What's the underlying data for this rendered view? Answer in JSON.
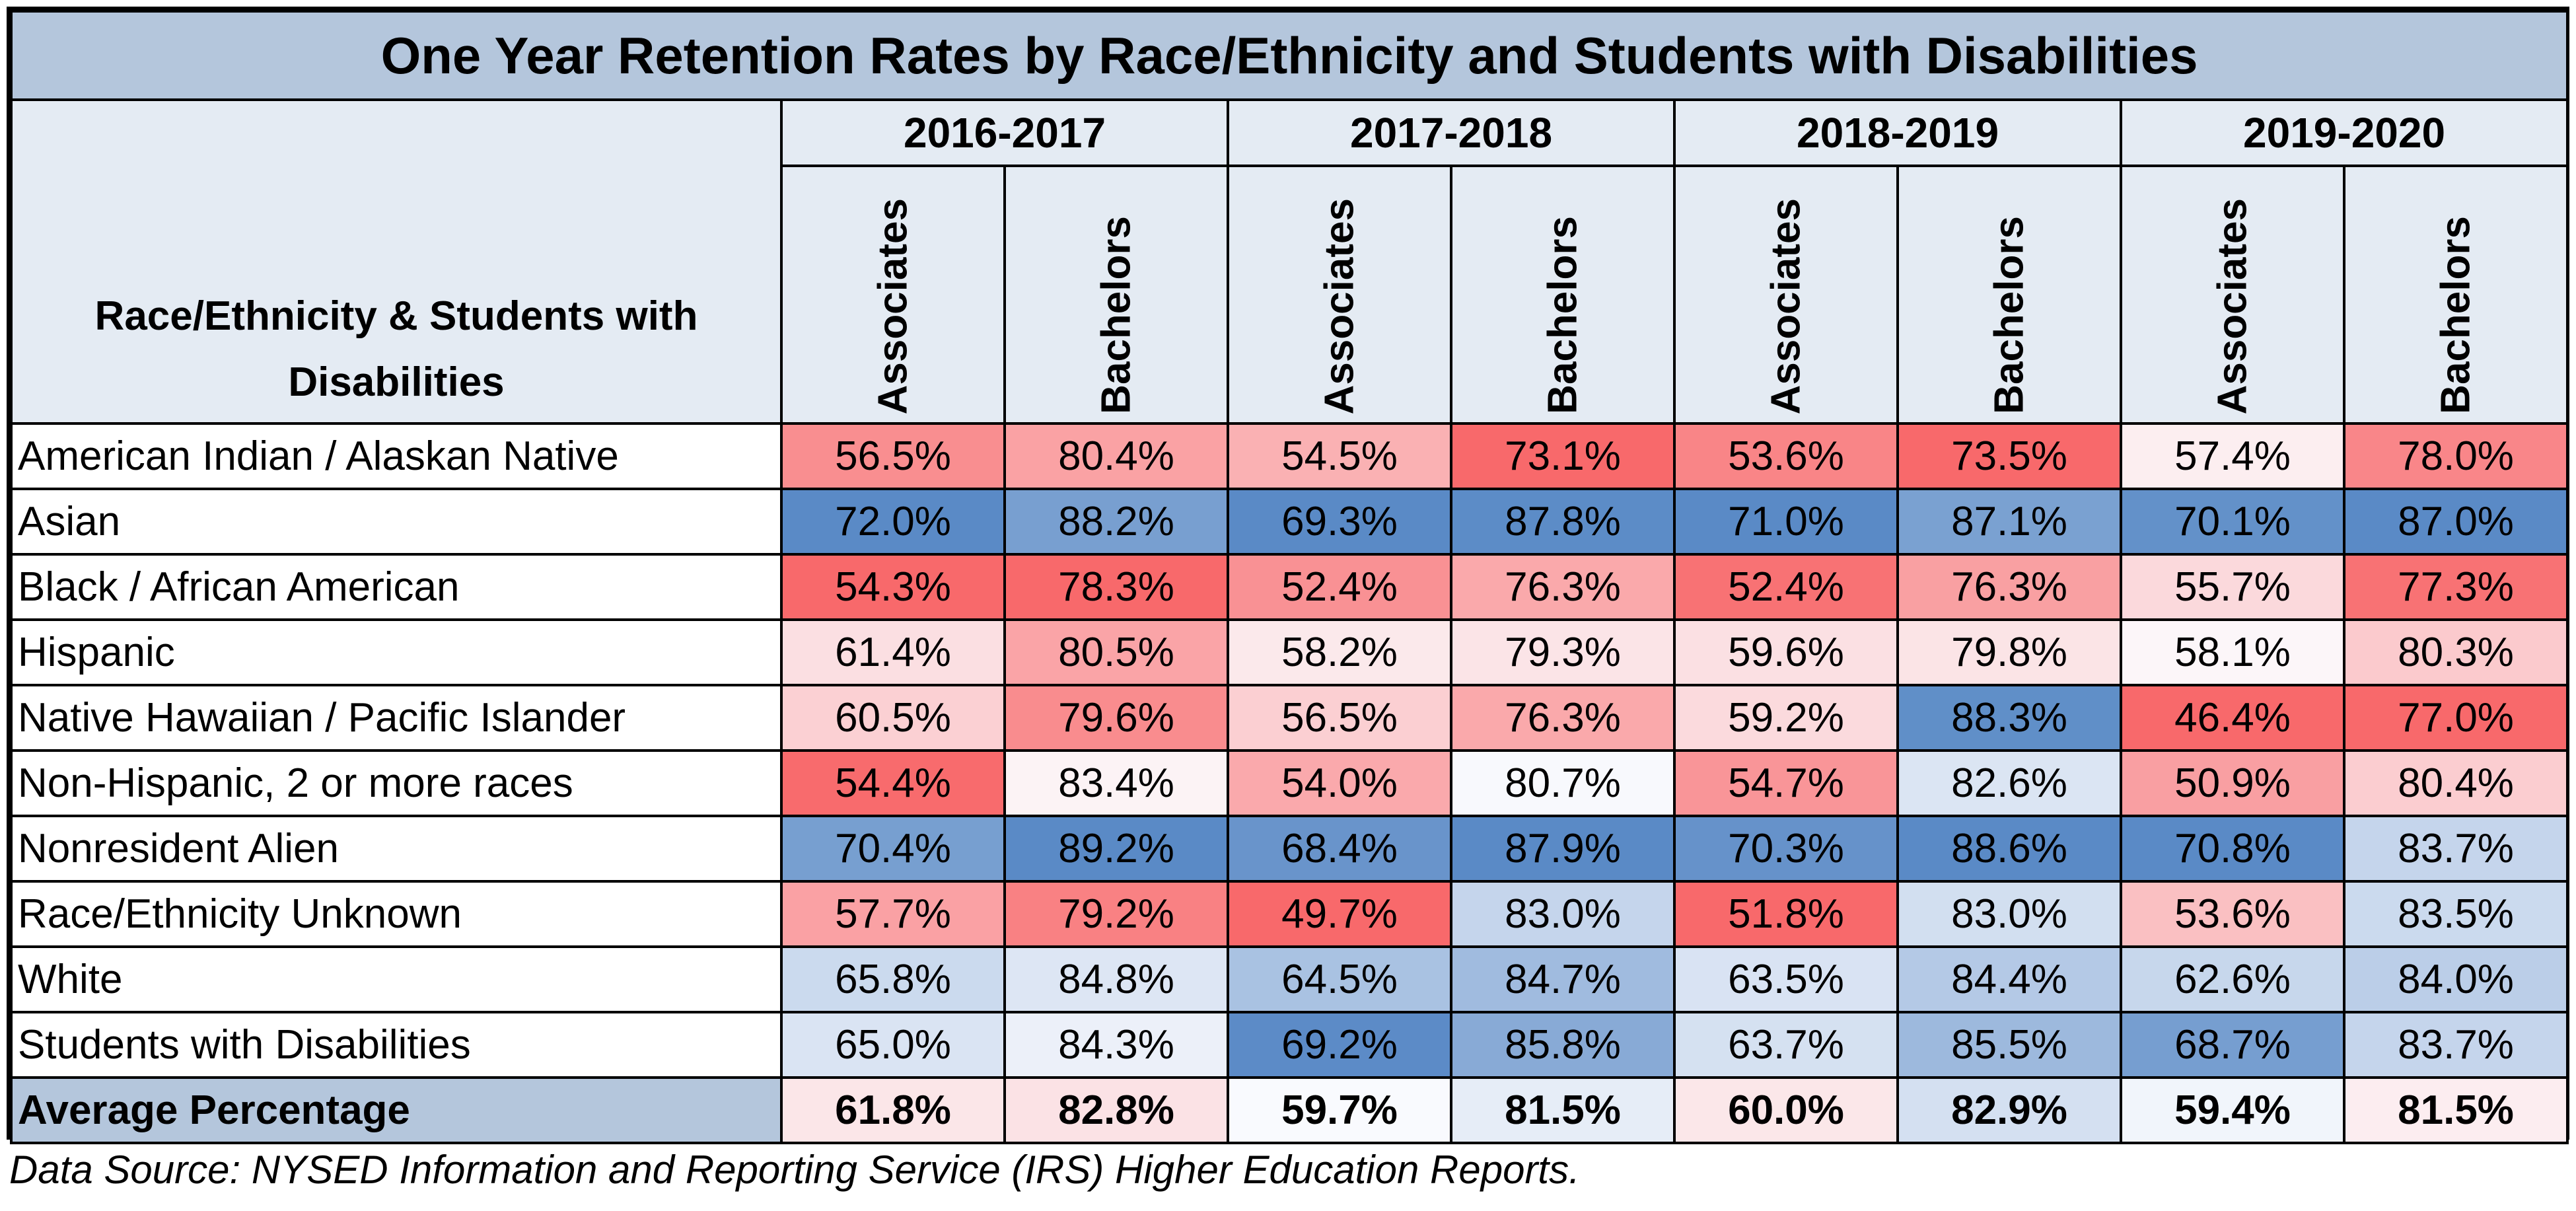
{
  "chart_data": {
    "type": "table",
    "title": "One Year Retention Rates by Race/Ethnicity and Students with Disabilities",
    "row_header": "Race/Ethnicity & Students with Disabilities",
    "years": [
      "2016-2017",
      "2017-2018",
      "2018-2019",
      "2019-2020"
    ],
    "degrees": [
      "Associates",
      "Bachelors"
    ],
    "rows": [
      {
        "label": "American Indian / Alaskan Native",
        "values": [
          "56.5%",
          "80.4%",
          "54.5%",
          "73.1%",
          "53.6%",
          "73.5%",
          "57.4%",
          "78.0%"
        ]
      },
      {
        "label": "Asian",
        "values": [
          "72.0%",
          "88.2%",
          "69.3%",
          "87.8%",
          "71.0%",
          "87.1%",
          "70.1%",
          "87.0%"
        ]
      },
      {
        "label": "Black / African American",
        "values": [
          "54.3%",
          "78.3%",
          "52.4%",
          "76.3%",
          "52.4%",
          "76.3%",
          "55.7%",
          "77.3%"
        ]
      },
      {
        "label": "Hispanic",
        "values": [
          "61.4%",
          "80.5%",
          "58.2%",
          "79.3%",
          "59.6%",
          "79.8%",
          "58.1%",
          "80.3%"
        ]
      },
      {
        "label": "Native Hawaiian / Pacific Islander",
        "values": [
          "60.5%",
          "79.6%",
          "56.5%",
          "76.3%",
          "59.2%",
          "88.3%",
          "46.4%",
          "77.0%"
        ]
      },
      {
        "label": "Non-Hispanic, 2 or more races",
        "values": [
          "54.4%",
          "83.4%",
          "54.0%",
          "80.7%",
          "54.7%",
          "82.6%",
          "50.9%",
          "80.4%"
        ]
      },
      {
        "label": "Nonresident Alien",
        "values": [
          "70.4%",
          "89.2%",
          "68.4%",
          "87.9%",
          "70.3%",
          "88.6%",
          "70.8%",
          "83.7%"
        ]
      },
      {
        "label": "Race/Ethnicity Unknown",
        "values": [
          "57.7%",
          "79.2%",
          "49.7%",
          "83.0%",
          "51.8%",
          "83.0%",
          "53.6%",
          "83.5%"
        ]
      },
      {
        "label": "White",
        "values": [
          "65.8%",
          "84.8%",
          "64.5%",
          "84.7%",
          "63.5%",
          "84.4%",
          "62.6%",
          "84.0%"
        ]
      },
      {
        "label": "Students with Disabilities",
        "values": [
          "65.0%",
          "84.3%",
          "69.2%",
          "85.8%",
          "63.7%",
          "85.5%",
          "68.7%",
          "83.7%"
        ]
      }
    ],
    "average_row": {
      "label": "Average Percentage",
      "values": [
        "61.8%",
        "82.8%",
        "59.7%",
        "81.5%",
        "60.0%",
        "82.9%",
        "59.4%",
        "81.5%"
      ]
    },
    "color_scale": {
      "low": "#f8696b",
      "mid": "#fcfcff",
      "high": "#5a8ac6"
    }
  },
  "source_note": "Data Source: NYSED Information and Reporting Service (IRS) Higher Education Reports."
}
